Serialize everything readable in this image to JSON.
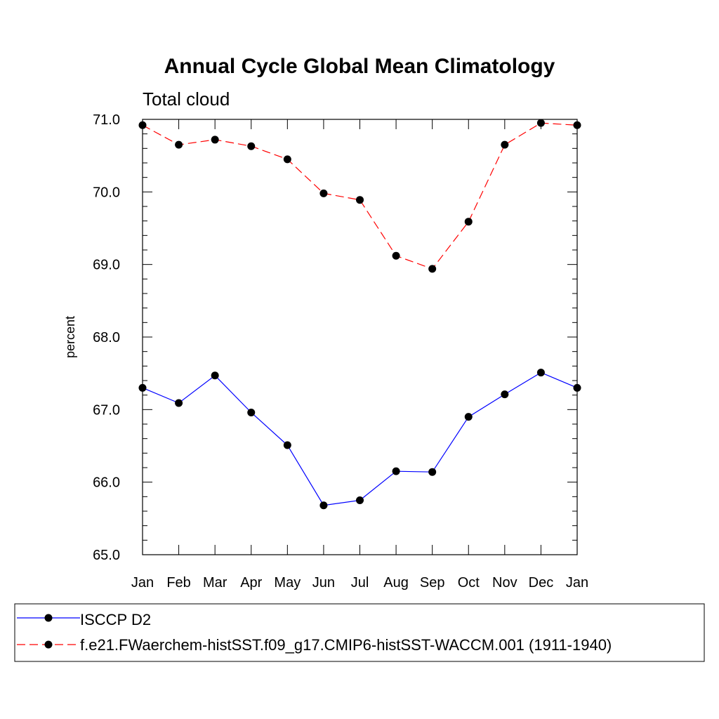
{
  "colors": {
    "series_1": "#0000ff",
    "series_2": "#ff0000",
    "marker": "#000000",
    "axis": "#000000",
    "background": "#ffffff"
  },
  "chart_data": {
    "type": "line",
    "title": "Annual Cycle Global Mean Climatology",
    "subtitle": "Total cloud",
    "xlabel": "",
    "ylabel": "percent",
    "categories": [
      "Jan",
      "Feb",
      "Mar",
      "Apr",
      "May",
      "Jun",
      "Jul",
      "Aug",
      "Sep",
      "Oct",
      "Nov",
      "Dec",
      "Jan"
    ],
    "ylim": [
      65.0,
      71.0
    ],
    "yticks": [
      "65.0",
      "66.0",
      "67.0",
      "68.0",
      "69.0",
      "70.0",
      "71.0"
    ],
    "grid": false,
    "legend_position": "bottom",
    "series": [
      {
        "name": "ISCCP D2",
        "line_style": "solid",
        "color": "#0000ff",
        "values": [
          67.3,
          67.09,
          67.47,
          66.96,
          66.51,
          65.68,
          65.75,
          66.15,
          66.14,
          66.9,
          67.21,
          67.51,
          67.3
        ]
      },
      {
        "name": "f.e21.FWaerchem-histSST.f09_g17.CMIP6-histSST-WACCM.001 (1911-1940)",
        "line_style": "dashed",
        "color": "#ff0000",
        "values": [
          70.92,
          70.65,
          70.72,
          70.63,
          70.45,
          69.98,
          69.89,
          69.12,
          68.94,
          69.59,
          70.65,
          70.95,
          70.92
        ]
      }
    ]
  }
}
